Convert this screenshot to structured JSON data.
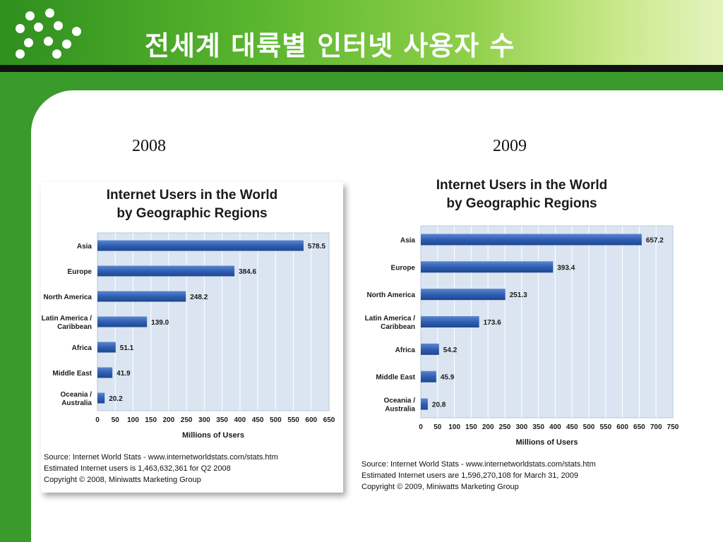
{
  "slide": {
    "title": "전세계 대륙별 인터넷 사용자 수"
  },
  "colors": {
    "bar": "#2f5fb3",
    "plot_bg": "#dbe5f1",
    "grid": "#ffffff",
    "header_green": "#3a9a2c"
  },
  "chart_data": [
    {
      "type": "bar",
      "year_label": "2008",
      "title": "Internet Users in the World",
      "subtitle": "by Geographic Regions",
      "xlabel": "Millions of Users",
      "categories": [
        "Asia",
        "Europe",
        "North America",
        "Latin America / Caribbean",
        "Africa",
        "Middle East",
        "Oceania / Australia"
      ],
      "category_lines": [
        [
          "Asia"
        ],
        [
          "Europe"
        ],
        [
          "North America"
        ],
        [
          "Latin America /",
          "Caribbean"
        ],
        [
          "Africa"
        ],
        [
          "Middle East"
        ],
        [
          "Oceania  /",
          "Australia"
        ]
      ],
      "values": [
        578.5,
        384.6,
        248.2,
        139.0,
        51.1,
        41.9,
        20.2
      ],
      "value_labels": [
        "578.5",
        "384.6",
        "248.2",
        "139.0",
        "51.1",
        "41.9",
        "20.2"
      ],
      "xlim": [
        0,
        650
      ],
      "xticks": [
        0,
        50,
        100,
        150,
        200,
        250,
        300,
        350,
        400,
        450,
        500,
        550,
        600,
        650
      ],
      "grid": true,
      "orientation": "horizontal",
      "notes": [
        "Source: Internet World Stats - www.internetworldstats.com/stats.htm",
        "Estimated Internet users is 1,463,632,361 for Q2 2008",
        "Copyright © 2008, Miniwatts Marketing Group"
      ]
    },
    {
      "type": "bar",
      "year_label": "2009",
      "title": "Internet Users in the World",
      "subtitle": "by Geographic Regions",
      "xlabel": "Millions of Users",
      "categories": [
        "Asia",
        "Europe",
        "North America",
        "Latin America / Caribbean",
        "Africa",
        "Middle East",
        "Oceania / Australia"
      ],
      "category_lines": [
        [
          "Asia"
        ],
        [
          "Europe"
        ],
        [
          "North America"
        ],
        [
          "Latin America /",
          "Caribbean"
        ],
        [
          "Africa"
        ],
        [
          "Middle East"
        ],
        [
          "Oceania  /",
          "Australia"
        ]
      ],
      "values": [
        657.2,
        393.4,
        251.3,
        173.6,
        54.2,
        45.9,
        20.8
      ],
      "value_labels": [
        "657.2",
        "393.4",
        "251.3",
        "173.6",
        "54.2",
        "45.9",
        "20.8"
      ],
      "xlim": [
        0,
        750
      ],
      "xticks": [
        0,
        50,
        100,
        150,
        200,
        250,
        300,
        350,
        400,
        450,
        500,
        550,
        600,
        650,
        700,
        750
      ],
      "grid": true,
      "orientation": "horizontal",
      "notes": [
        "Source: Internet World Stats - www.internetworldstats.com/stats.htm",
        "Estimated Internet users are 1,596,270,108 for March 31, 2009",
        "Copyright © 2009, Miniwatts Marketing Group"
      ]
    }
  ]
}
